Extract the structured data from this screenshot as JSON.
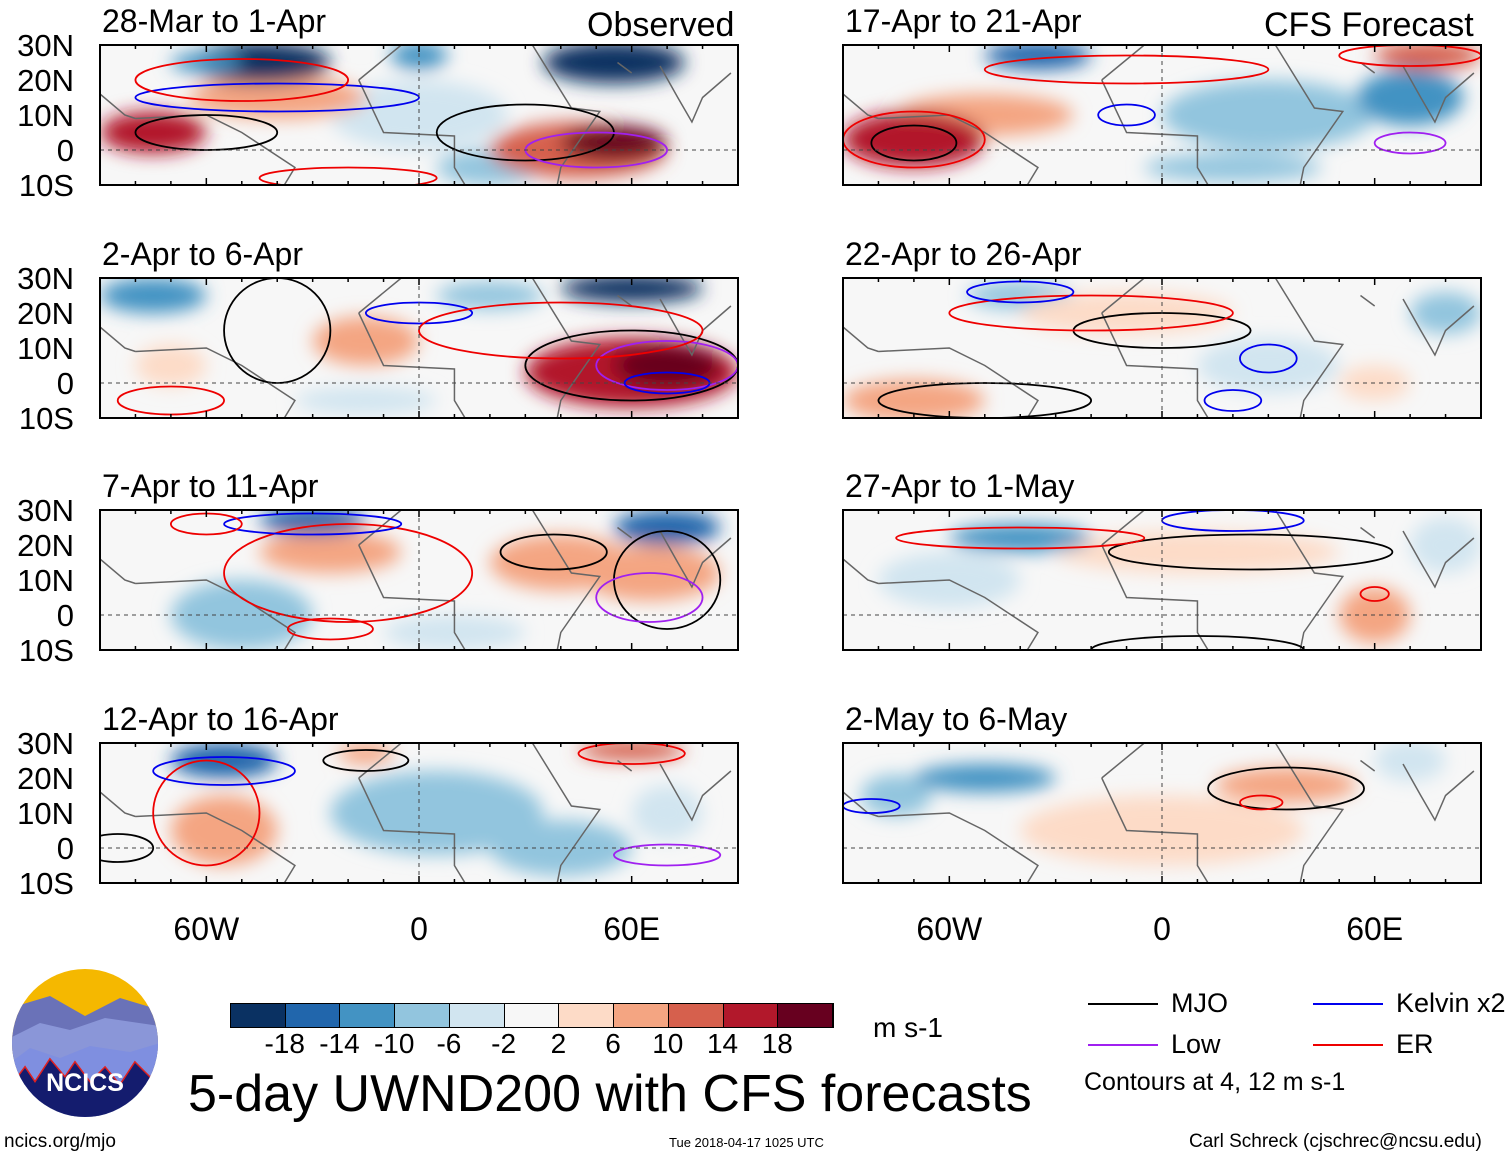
{
  "title": "5-day UWND200 with CFS forecasts",
  "headers": {
    "left": "Observed",
    "right": "CFS Forecast"
  },
  "lat_labels": [
    "30N",
    "20N",
    "10N",
    "0",
    "10S"
  ],
  "lon_labels": [
    "60W",
    "0",
    "60E"
  ],
  "colorbar": {
    "unit": "m s-1",
    "ticks": [
      "-18",
      "-14",
      "-10",
      "-6",
      "-2",
      "2",
      "6",
      "10",
      "14",
      "18"
    ],
    "colors": [
      "#0a3162",
      "#2166ac",
      "#4393c3",
      "#92c5de",
      "#d1e5f0",
      "#f7f7f7",
      "#fddbc7",
      "#f4a582",
      "#d6604d",
      "#b2182b",
      "#67001f"
    ]
  },
  "legend": {
    "items": [
      {
        "label": "MJO",
        "color": "#000000"
      },
      {
        "label": "Kelvin x2",
        "color": "#0000ee"
      },
      {
        "label": "Low",
        "color": "#a020f0"
      },
      {
        "label": "ER",
        "color": "#ee0000"
      }
    ],
    "note": "Contours at 4, 12 m s-1"
  },
  "footer": {
    "left": "ncics.org/mjo",
    "center": "Tue 2018-04-17 1025 UTC",
    "right": "Carl Schreck (cjschrec@ncsu.edu)"
  },
  "logo_text": "NCICS",
  "chart_data": {
    "type": "heatmap",
    "variable": "200-hPa zonal wind anomaly (m s-1)",
    "lon_range": [
      -90,
      90
    ],
    "lat_range": [
      -10,
      30
    ],
    "panels": [
      {
        "title": "28-Mar to 1-Apr",
        "col": "left",
        "row": 0,
        "blobs": [
          [
            0,
            10,
            25,
            10,
            -4
          ],
          [
            20,
            -5,
            15,
            5,
            -6
          ],
          [
            -40,
            15,
            25,
            6,
            8
          ],
          [
            -75,
            5,
            15,
            6,
            18
          ],
          [
            45,
            0,
            25,
            8,
            14
          ],
          [
            55,
            2,
            15,
            5,
            20
          ],
          [
            -45,
            25,
            20,
            6,
            -20
          ],
          [
            0,
            27,
            8,
            4,
            -10
          ],
          [
            55,
            25,
            20,
            6,
            -20
          ],
          [
            -60,
            25,
            10,
            3,
            -10
          ]
        ],
        "contours": [
          [
            "black",
            30,
            5,
            25,
            8
          ],
          [
            "black",
            -60,
            5,
            20,
            5
          ],
          [
            "blue",
            -40,
            15,
            40,
            4
          ],
          [
            "red",
            -50,
            20,
            30,
            6
          ],
          [
            "purple",
            50,
            0,
            20,
            5
          ],
          [
            "red",
            -20,
            -8,
            25,
            3
          ]
        ]
      },
      {
        "title": "2-Apr to 6-Apr",
        "col": "left",
        "row": 1,
        "blobs": [
          [
            -15,
            -5,
            20,
            4,
            -4
          ],
          [
            20,
            25,
            15,
            4,
            -8
          ],
          [
            -75,
            25,
            15,
            5,
            -10
          ],
          [
            -70,
            5,
            10,
            6,
            6
          ],
          [
            -15,
            12,
            15,
            7,
            10
          ],
          [
            60,
            3,
            30,
            10,
            18
          ],
          [
            70,
            5,
            15,
            6,
            20
          ],
          [
            60,
            27,
            20,
            4,
            -18
          ]
        ],
        "contours": [
          [
            "black",
            -40,
            15,
            15,
            15
          ],
          [
            "black",
            60,
            5,
            30,
            10
          ],
          [
            "purple",
            70,
            5,
            20,
            7
          ],
          [
            "blue",
            0,
            20,
            15,
            3
          ],
          [
            "red",
            40,
            15,
            40,
            8
          ],
          [
            "blue",
            70,
            0,
            12,
            3
          ],
          [
            "red",
            -70,
            -5,
            15,
            4
          ]
        ]
      },
      {
        "title": "7-Apr to 11-Apr",
        "col": "left",
        "row": 2,
        "blobs": [
          [
            10,
            -5,
            20,
            5,
            -4
          ],
          [
            -50,
            0,
            20,
            10,
            -8
          ],
          [
            -25,
            18,
            20,
            6,
            8
          ],
          [
            40,
            15,
            20,
            8,
            8
          ],
          [
            65,
            12,
            20,
            8,
            8
          ],
          [
            -30,
            27,
            15,
            4,
            -16
          ],
          [
            70,
            25,
            15,
            5,
            -14
          ]
        ],
        "contours": [
          [
            "red",
            -20,
            12,
            35,
            14
          ],
          [
            "black",
            38,
            18,
            15,
            5
          ],
          [
            "black",
            70,
            10,
            15,
            14
          ],
          [
            "purple",
            65,
            5,
            15,
            7
          ],
          [
            "blue",
            -30,
            26,
            25,
            3
          ],
          [
            "red",
            -25,
            -4,
            12,
            3
          ],
          [
            "red",
            -60,
            26,
            10,
            3
          ]
        ]
      },
      {
        "title": "12-Apr to 16-Apr",
        "col": "left",
        "row": 3,
        "blobs": [
          [
            5,
            10,
            30,
            12,
            -8
          ],
          [
            40,
            0,
            20,
            8,
            -6
          ],
          [
            70,
            10,
            10,
            8,
            -4
          ],
          [
            -55,
            5,
            15,
            10,
            8
          ],
          [
            -15,
            27,
            8,
            3,
            10
          ],
          [
            60,
            28,
            15,
            3,
            12
          ],
          [
            -55,
            25,
            15,
            5,
            -16
          ]
        ],
        "contours": [
          [
            "red",
            -60,
            10,
            15,
            15
          ],
          [
            "black",
            -15,
            25,
            12,
            3
          ],
          [
            "red",
            60,
            27,
            15,
            3
          ],
          [
            "blue",
            -55,
            22,
            20,
            4
          ],
          [
            "purple",
            70,
            -2,
            15,
            3
          ],
          [
            "black",
            -85,
            0,
            10,
            4
          ]
        ]
      },
      {
        "title": "17-Apr to 21-Apr",
        "col": "right",
        "row": 0,
        "blobs": [
          [
            30,
            10,
            30,
            10,
            -6
          ],
          [
            20,
            -5,
            25,
            4,
            -6
          ],
          [
            70,
            15,
            15,
            8,
            -10
          ],
          [
            -50,
            10,
            25,
            6,
            8
          ],
          [
            -70,
            3,
            20,
            8,
            18
          ],
          [
            -35,
            27,
            15,
            4,
            -16
          ],
          [
            75,
            27,
            15,
            4,
            14
          ]
        ],
        "contours": [
          [
            "red",
            -10,
            23,
            40,
            4
          ],
          [
            "red",
            -70,
            3,
            20,
            8
          ],
          [
            "black",
            -70,
            2,
            12,
            5
          ],
          [
            "blue",
            -10,
            10,
            8,
            3
          ],
          [
            "purple",
            70,
            2,
            10,
            3
          ],
          [
            "red",
            70,
            27,
            20,
            3
          ]
        ]
      },
      {
        "title": "22-Apr to 26-Apr",
        "col": "right",
        "row": 1,
        "blobs": [
          [
            30,
            5,
            20,
            8,
            -4
          ],
          [
            -40,
            25,
            15,
            4,
            -8
          ],
          [
            -10,
            20,
            30,
            6,
            4
          ],
          [
            60,
            0,
            10,
            5,
            6
          ],
          [
            -70,
            -5,
            20,
            6,
            8
          ],
          [
            80,
            20,
            10,
            6,
            -8
          ]
        ],
        "contours": [
          [
            "black",
            0,
            15,
            25,
            5
          ],
          [
            "red",
            -20,
            20,
            40,
            5
          ],
          [
            "blue",
            -40,
            26,
            15,
            3
          ],
          [
            "blue",
            30,
            7,
            8,
            4
          ],
          [
            "black",
            -50,
            -5,
            30,
            5
          ],
          [
            "blue",
            20,
            -5,
            8,
            3
          ]
        ]
      },
      {
        "title": "27-Apr to 1-May",
        "col": "right",
        "row": 2,
        "blobs": [
          [
            -60,
            10,
            20,
            8,
            -4
          ],
          [
            80,
            20,
            10,
            8,
            -4
          ],
          [
            10,
            18,
            40,
            6,
            6
          ],
          [
            60,
            0,
            10,
            8,
            10
          ],
          [
            -40,
            22,
            20,
            4,
            -10
          ]
        ],
        "contours": [
          [
            "black",
            25,
            18,
            40,
            5
          ],
          [
            "red",
            -40,
            22,
            35,
            3
          ],
          [
            "blue",
            20,
            27,
            20,
            3
          ],
          [
            "red",
            60,
            6,
            4,
            2
          ],
          [
            "black",
            10,
            -10,
            30,
            4
          ]
        ]
      },
      {
        "title": "2-May to 6-May",
        "col": "right",
        "row": 3,
        "blobs": [
          [
            0,
            5,
            40,
            10,
            3
          ],
          [
            -75,
            15,
            10,
            6,
            -6
          ],
          [
            70,
            25,
            10,
            6,
            -4
          ],
          [
            35,
            18,
            20,
            5,
            8
          ],
          [
            -50,
            20,
            20,
            4,
            -12
          ]
        ],
        "contours": [
          [
            "black",
            35,
            17,
            22,
            6
          ],
          [
            "red",
            28,
            13,
            6,
            2
          ],
          [
            "blue",
            -82,
            12,
            8,
            2
          ]
        ]
      }
    ]
  }
}
